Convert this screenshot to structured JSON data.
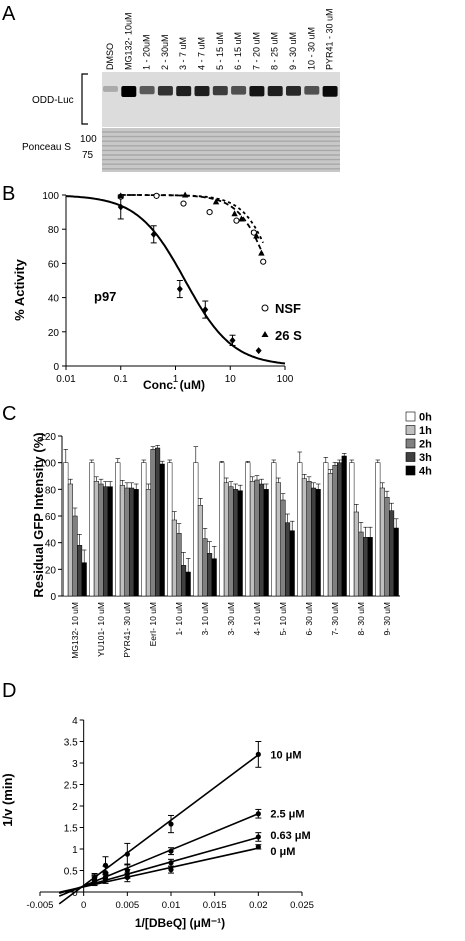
{
  "panels": {
    "A": {
      "letter": "A",
      "lanes": [
        "DMSO",
        "MG132- 10uM",
        "1 - 20uM",
        "2 - 30uM",
        "3 - 7 uM",
        "4 - 7 uM",
        "5 - 15 uM",
        "6 - 15 uM",
        "7 - 20 uM",
        "8 - 25 uM",
        "9 - 30 uM",
        "10 - 30 uM",
        "PYR41 - 30 uM"
      ],
      "blot_label_top": "ODD-Luc",
      "blot_label_bottom": "Ponceau S",
      "marker_100": "100",
      "marker_75": "75",
      "band_intensity": [
        0.15,
        1.0,
        0.55,
        0.75,
        0.85,
        0.85,
        0.7,
        0.6,
        0.9,
        0.85,
        0.8,
        0.6,
        0.95
      ]
    },
    "B": {
      "letter": "B"
    },
    "C": {
      "letter": "C"
    },
    "D": {
      "letter": "D"
    }
  },
  "chart_data": [
    {
      "panel": "B",
      "type": "scatter",
      "xlabel": "Conc. (uM)",
      "ylabel": "% Activity",
      "xscale": "log",
      "xlim": [
        0.01,
        100
      ],
      "ylim": [
        0,
        100
      ],
      "xticks": [
        "0.01",
        "0.1",
        "1",
        "10",
        "100"
      ],
      "yticks": [
        "0",
        "20",
        "40",
        "60",
        "80",
        "100"
      ],
      "series": [
        {
          "name": "p97",
          "marker": "diamond",
          "line": "solid",
          "x": [
            0.1,
            0.4,
            1.2,
            3.5,
            11,
            33
          ],
          "y": [
            93,
            77,
            45,
            33,
            15,
            9
          ],
          "err": [
            7,
            5,
            5,
            5,
            3,
            0
          ],
          "ic50": 1.5
        },
        {
          "name": "NSF",
          "marker": "circle-open",
          "line": "dashed",
          "x": [
            0.1,
            0.45,
            1.4,
            4.2,
            13,
            27,
            40
          ],
          "y": [
            99,
            99.5,
            95,
            90,
            85,
            78,
            61
          ]
        },
        {
          "name": "26 S",
          "marker": "triangle",
          "line": "dashed",
          "x": [
            0.1,
            1.5,
            5.5,
            12,
            16,
            30,
            37
          ],
          "y": [
            99.5,
            100,
            96,
            89,
            86,
            76,
            66
          ]
        }
      ],
      "annotations": {
        "p97_label": "p97",
        "nsf_label": "NSF",
        "s26_label": "26 S"
      }
    },
    {
      "panel": "C",
      "type": "bar",
      "ylabel": "Residual GFP Intensity (%)",
      "ylim": [
        0,
        120
      ],
      "yticks": [
        "0",
        "20",
        "40",
        "60",
        "80",
        "100",
        "120"
      ],
      "categories": [
        "MG132- 10 uM",
        "YU101- 10 uM",
        "PYR41- 30 uM",
        "EerI- 10 uM",
        "1- 10 uM",
        "3- 10 uM",
        "3- 30 uM",
        "4- 10 uM",
        "5- 10 uM",
        "6- 30 uM",
        "7- 30 uM",
        "8- 30 uM",
        "9- 30 uM"
      ],
      "legend": [
        "0h",
        "1h",
        "2h",
        "3h",
        "4h"
      ],
      "colors": [
        "#ffffff",
        "#bfbfbf",
        "#808080",
        "#404040",
        "#000000"
      ],
      "series": [
        {
          "name": "0h",
          "values": [
            100,
            100,
            100,
            100,
            100,
            100,
            100,
            100,
            100,
            100,
            100,
            100,
            100
          ],
          "err": [
            10,
            2,
            3,
            2,
            2,
            12,
            1,
            1,
            2,
            8,
            4,
            2,
            2
          ]
        },
        {
          "name": "1h",
          "values": [
            84,
            86,
            83,
            80,
            57,
            68,
            85,
            86,
            85,
            88,
            92,
            63,
            81
          ]
        },
        {
          "name": "2h",
          "values": [
            60,
            84,
            81,
            110,
            47,
            43,
            82,
            87,
            72,
            86,
            98,
            48,
            74
          ]
        },
        {
          "name": "3h",
          "values": [
            38,
            82,
            81,
            111,
            23,
            32,
            80,
            84,
            55,
            81,
            100,
            44,
            64
          ]
        },
        {
          "name": "4h",
          "values": [
            25,
            82,
            80,
            99,
            18,
            28,
            79,
            80,
            49,
            80,
            105,
            44,
            51
          ]
        }
      ]
    },
    {
      "panel": "D",
      "type": "scatter",
      "xlabel": "1/[DBeQ] (μM⁻¹)",
      "ylabel": "1/v (min)",
      "xlim": [
        -0.005,
        0.025
      ],
      "ylim": [
        0,
        4
      ],
      "xticks": [
        "-0.005",
        "0",
        "0.005",
        "0.01",
        "0.015",
        "0.02",
        "0.025"
      ],
      "yticks": [
        "0",
        "0.5",
        "1",
        "1.5",
        "2",
        "2.5",
        "3",
        "3.5",
        "4"
      ],
      "series": [
        {
          "name": "10 μM",
          "x": [
            0.00125,
            0.0025,
            0.005,
            0.01,
            0.02
          ],
          "y": [
            0.33,
            0.62,
            0.88,
            1.58,
            3.2
          ],
          "err": [
            0.1,
            0.2,
            0.25,
            0.2,
            0.3
          ],
          "slope": 152,
          "intercept": 0.15
        },
        {
          "name": "2.5 μM",
          "x": [
            0.00125,
            0.0025,
            0.005,
            0.01,
            0.02
          ],
          "y": [
            0.3,
            0.45,
            0.5,
            0.95,
            1.82
          ],
          "err": [
            0.1,
            0.15,
            0.15,
            0.08,
            0.1
          ],
          "slope": 84,
          "intercept": 0.14
        },
        {
          "name": "0.63 μM",
          "x": [
            0.00125,
            0.0025,
            0.005,
            0.01,
            0.02
          ],
          "y": [
            0.28,
            0.35,
            0.42,
            0.68,
            1.28
          ],
          "err": [
            0.1,
            0.1,
            0.1,
            0.08,
            0.1
          ],
          "slope": 57,
          "intercept": 0.13
        },
        {
          "name": "0 μM",
          "x": [
            0.00125,
            0.0025,
            0.005,
            0.01,
            0.02
          ],
          "y": [
            0.25,
            0.3,
            0.34,
            0.52,
            1.05
          ],
          "err": [
            0.1,
            0.1,
            0.1,
            0.08,
            0.05
          ],
          "slope": 45,
          "intercept": 0.12
        }
      ]
    }
  ]
}
